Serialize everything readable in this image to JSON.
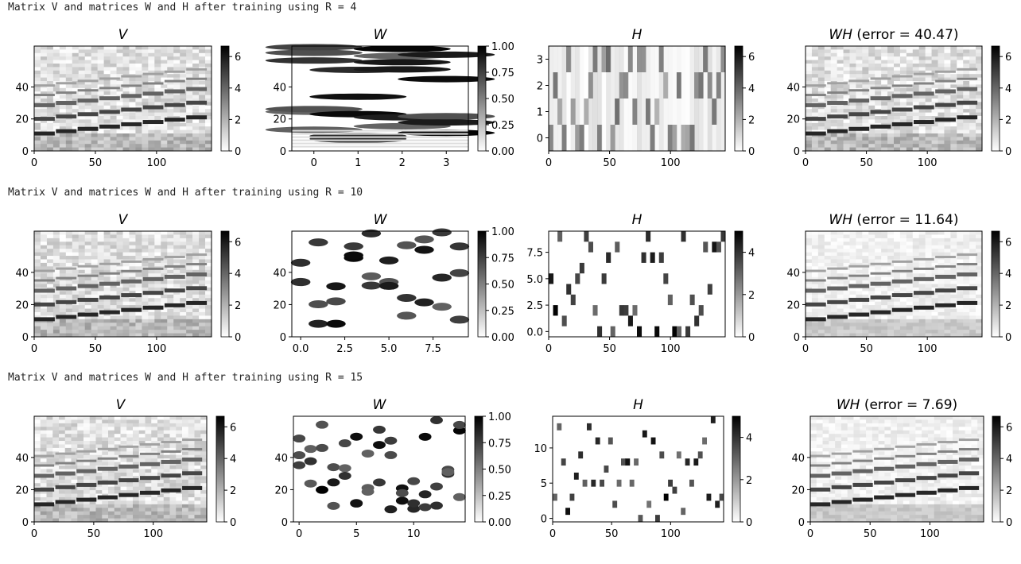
{
  "rows": [
    {
      "header": "Matrix V and matrices W and H after training using R = 4"
    },
    {
      "header": "Matrix V and matrices W and H after training using R = 10"
    },
    {
      "header": "Matrix V and matrices W and H after training using R = 15"
    }
  ],
  "chart_data": [
    {
      "type": "heatmap",
      "row": 0,
      "title_italic": "V",
      "title_rest": "",
      "xticks": [
        "0",
        "50",
        "100"
      ],
      "yticks": [
        "0",
        "20",
        "40"
      ],
      "cbar_ticks": [
        "0",
        "2",
        "4",
        "6"
      ],
      "cmap": "gray_r"
    },
    {
      "type": "heatmap",
      "row": 0,
      "title_italic": "W",
      "title_rest": "",
      "xticks": [
        "0",
        "1",
        "2",
        "3"
      ],
      "yticks": [
        "0",
        "20",
        "40"
      ],
      "cbar_ticks": [
        "0.00",
        "0.25",
        "0.50",
        "0.75",
        "1.00"
      ],
      "cmap": "gray_r"
    },
    {
      "type": "heatmap",
      "row": 0,
      "title_italic": "H",
      "title_rest": "",
      "xticks": [
        "0",
        "50",
        "100"
      ],
      "yticks": [
        "0",
        "1",
        "2",
        "3"
      ],
      "cbar_ticks": [
        "0",
        "2",
        "4",
        "6"
      ],
      "cmap": "gray_r"
    },
    {
      "type": "heatmap",
      "row": 0,
      "title_italic": "WH",
      "title_rest": " (error = 40.47)",
      "xticks": [
        "0",
        "50",
        "100"
      ],
      "yticks": [
        "0",
        "20",
        "40"
      ],
      "cbar_ticks": [
        "0",
        "2",
        "4",
        "6"
      ],
      "cmap": "gray_r"
    },
    {
      "type": "heatmap",
      "row": 1,
      "title_italic": "V",
      "title_rest": "",
      "xticks": [
        "0",
        "50",
        "100"
      ],
      "yticks": [
        "0",
        "20",
        "40"
      ],
      "cbar_ticks": [
        "0",
        "2",
        "4",
        "6"
      ],
      "cmap": "gray_r"
    },
    {
      "type": "heatmap",
      "row": 1,
      "title_italic": "W",
      "title_rest": "",
      "xticks": [
        "0.0",
        "2.5",
        "5.0",
        "7.5"
      ],
      "yticks": [
        "0",
        "20",
        "40"
      ],
      "cbar_ticks": [
        "0.00",
        "0.25",
        "0.50",
        "0.75",
        "1.00"
      ],
      "cmap": "gray_r"
    },
    {
      "type": "heatmap",
      "row": 1,
      "title_italic": "H",
      "title_rest": "",
      "xticks": [
        "0",
        "50",
        "100"
      ],
      "yticks": [
        "0.0",
        "2.5",
        "5.0",
        "7.5"
      ],
      "cbar_ticks": [
        "0",
        "2",
        "4"
      ],
      "cmap": "gray_r"
    },
    {
      "type": "heatmap",
      "row": 1,
      "title_italic": "WH",
      "title_rest": " (error = 11.64)",
      "xticks": [
        "0",
        "50",
        "100"
      ],
      "yticks": [
        "0",
        "20",
        "40"
      ],
      "cbar_ticks": [
        "0",
        "2",
        "4",
        "6"
      ],
      "cmap": "gray_r"
    },
    {
      "type": "heatmap",
      "row": 2,
      "title_italic": "V",
      "title_rest": "",
      "xticks": [
        "0",
        "50",
        "100"
      ],
      "yticks": [
        "0",
        "20",
        "40"
      ],
      "cbar_ticks": [
        "0",
        "2",
        "4",
        "6"
      ],
      "cmap": "gray_r"
    },
    {
      "type": "heatmap",
      "row": 2,
      "title_italic": "W",
      "title_rest": "",
      "xticks": [
        "0",
        "5",
        "10"
      ],
      "yticks": [
        "0",
        "20",
        "40"
      ],
      "cbar_ticks": [
        "0.00",
        "0.25",
        "0.50",
        "0.75",
        "1.00"
      ],
      "cmap": "gray_r"
    },
    {
      "type": "heatmap",
      "row": 2,
      "title_italic": "H",
      "title_rest": "",
      "xticks": [
        "0",
        "50",
        "100"
      ],
      "yticks": [
        "0",
        "5",
        "10"
      ],
      "cbar_ticks": [
        "0",
        "2",
        "4"
      ],
      "cmap": "gray_r"
    },
    {
      "type": "heatmap",
      "row": 2,
      "title_italic": "WH",
      "title_rest": " (error = 7.69)",
      "xticks": [
        "0",
        "50",
        "100"
      ],
      "yticks": [
        "0",
        "20",
        "40"
      ],
      "cbar_ticks": [
        "0",
        "2",
        "4",
        "6"
      ],
      "cmap": "gray_r"
    }
  ]
}
